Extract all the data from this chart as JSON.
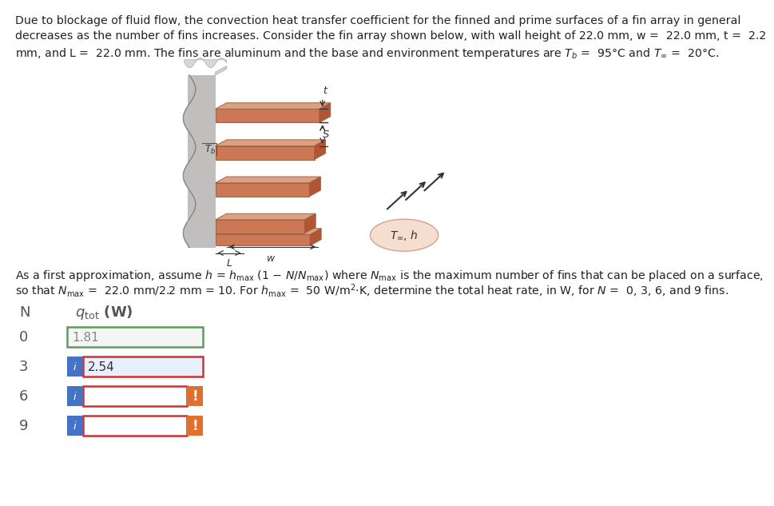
{
  "bg_color": "#ffffff",
  "text_color": "#222222",
  "p1_lines": [
    "Due to blockage of fluid flow, the convection heat transfer coefficient for the finned and prime surfaces of a fin array in general",
    "decreases as the number of fins increases. Consider the fin array shown below, with wall height of 22.0 mm, w =  22.0 mm, t =  2.2",
    "mm, and L =  22.0 mm. The fins are aluminum and the base and environment temperatures are $T_b$ =  95°C and $T_\\infty$ =  20°C."
  ],
  "p2_lines": [
    "As a first approximation, assume $h$ = $h_\\mathrm{max}$ (1 $-$ $N$/$N_\\mathrm{max}$) where $N_\\mathrm{max}$ is the maximum number of fins that can be placed on a surface,",
    "so that $N_\\mathrm{max}$ =  22.0 mm/2.2 mm = 10. For $h_\\mathrm{max}$ =  50 W/m$^2$$\\cdot$K, determine the total heat rate, in W, for $N$ =  0, 3, 6, and 9 fins."
  ],
  "col_header_N": "N",
  "col_header_q": "$q_\\mathrm{tot}$ (W)",
  "rows": [
    {
      "N": "0",
      "value": "1.81",
      "has_i_btn": false,
      "has_exclaim": false,
      "box_border": "#5a9e5a",
      "input_bg": "#f5f5f5",
      "text_color": "#888888"
    },
    {
      "N": "3",
      "value": "2.54",
      "has_i_btn": true,
      "has_exclaim": false,
      "box_border": "#cc3333",
      "input_bg": "#e8f0fe",
      "text_color": "#333333"
    },
    {
      "N": "6",
      "value": "",
      "has_i_btn": true,
      "has_exclaim": true,
      "box_border": "#cc3333",
      "input_bg": "#ffffff",
      "text_color": "#333333"
    },
    {
      "N": "9",
      "value": "",
      "has_i_btn": true,
      "has_exclaim": true,
      "box_border": "#cc3333",
      "input_bg": "#ffffff",
      "text_color": "#333333"
    }
  ],
  "blue_btn_color": "#4472c4",
  "orange_btn_color": "#e07030",
  "fin_face_color": "#cc7755",
  "fin_top_color": "#dda080",
  "fin_side_color": "#b05535",
  "wall_color": "#c0bfbe",
  "wall_dark": "#a0a09a",
  "wall_light": "#d8d7d4"
}
